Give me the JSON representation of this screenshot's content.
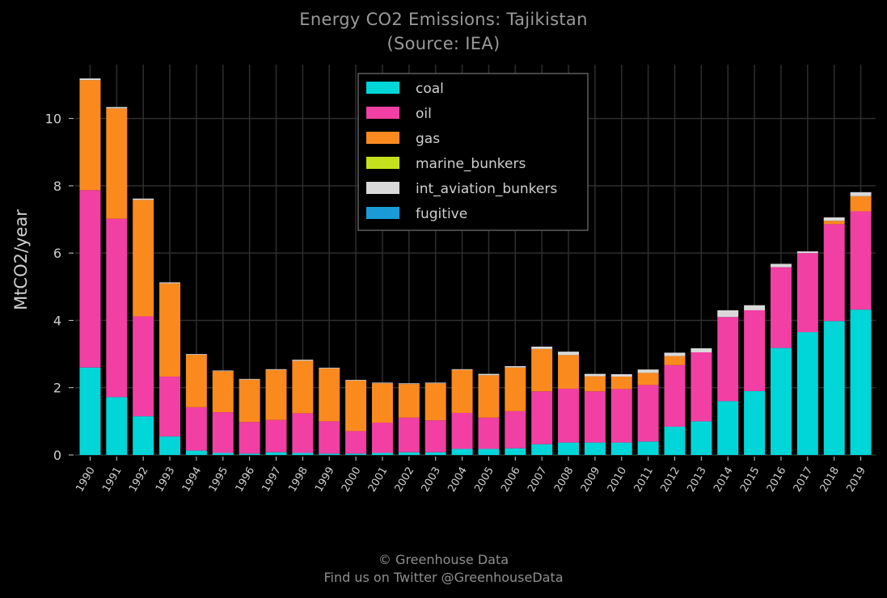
{
  "header": {
    "title": "Energy CO2 Emissions: Tajikistan",
    "subtitle": "(Source: IEA)"
  },
  "footer": {
    "credit_line1": "© Greenhouse Data",
    "credit_line2": "Find us on Twitter @GreenhouseData"
  },
  "colors": {
    "background": "#000000",
    "grid": "#2e2e2e",
    "coal": "#00d5d8",
    "oil": "#f23fa3",
    "gas": "#fb8a1e",
    "marine_bunkers": "#c4e01d",
    "int_aviation_bunkers": "#d9d9d9",
    "fugitive": "#1a9ad6"
  },
  "chart_data": {
    "type": "bar",
    "stacked": true,
    "title": "Energy CO2 Emissions: Tajikistan",
    "subtitle": "(Source: IEA)",
    "xlabel": "",
    "ylabel": "MtCO2/year",
    "ylim": [
      0,
      11.6
    ],
    "yticks": [
      0,
      2,
      4,
      6,
      8,
      10
    ],
    "grid": true,
    "legend_position": "top-center",
    "categories": [
      "1990",
      "1991",
      "1992",
      "1993",
      "1994",
      "1995",
      "1996",
      "1997",
      "1998",
      "1999",
      "2000",
      "2001",
      "2002",
      "2003",
      "2004",
      "2005",
      "2006",
      "2007",
      "2008",
      "2009",
      "2010",
      "2011",
      "2012",
      "2013",
      "2014",
      "2015",
      "2016",
      "2017",
      "2018",
      "2019"
    ],
    "series": [
      {
        "name": "coal",
        "color": "#00d5d8",
        "values": [
          2.6,
          1.72,
          1.15,
          0.55,
          0.13,
          0.06,
          0.04,
          0.08,
          0.06,
          0.04,
          0.04,
          0.06,
          0.08,
          0.08,
          0.18,
          0.18,
          0.2,
          0.32,
          0.37,
          0.37,
          0.37,
          0.4,
          0.84,
          1.0,
          1.6,
          1.9,
          3.18,
          3.65,
          3.98,
          4.32
        ]
      },
      {
        "name": "oil",
        "color": "#f23fa3",
        "values": [
          5.27,
          5.3,
          2.97,
          1.78,
          1.29,
          1.21,
          0.94,
          0.96,
          1.18,
          0.96,
          0.67,
          0.9,
          1.03,
          0.95,
          1.07,
          0.93,
          1.1,
          1.57,
          1.6,
          1.52,
          1.59,
          1.68,
          1.83,
          2.05,
          2.5,
          2.4,
          2.4,
          2.35,
          2.88,
          2.92
        ]
      },
      {
        "name": "gas",
        "color": "#fb8a1e",
        "values": [
          3.27,
          3.28,
          3.46,
          2.77,
          1.56,
          1.22,
          1.26,
          1.49,
          1.56,
          1.57,
          1.5,
          1.17,
          1.0,
          1.1,
          1.28,
          1.26,
          1.3,
          1.26,
          1.0,
          0.45,
          0.37,
          0.36,
          0.27,
          0.0,
          0.0,
          0.0,
          0.0,
          0.0,
          0.1,
          0.45
        ]
      },
      {
        "name": "marine_bunkers",
        "color": "#c4e01d",
        "values": [
          0,
          0,
          0,
          0,
          0,
          0,
          0,
          0,
          0,
          0,
          0,
          0,
          0,
          0,
          0,
          0,
          0,
          0,
          0,
          0,
          0,
          0,
          0,
          0,
          0,
          0,
          0,
          0,
          0,
          0
        ]
      },
      {
        "name": "int_aviation_bunkers",
        "color": "#d9d9d9",
        "values": [
          0.05,
          0.04,
          0.04,
          0.03,
          0.02,
          0.02,
          0.02,
          0.02,
          0.03,
          0.02,
          0.02,
          0.02,
          0.02,
          0.02,
          0.02,
          0.04,
          0.04,
          0.07,
          0.1,
          0.07,
          0.07,
          0.1,
          0.1,
          0.12,
          0.2,
          0.15,
          0.1,
          0.05,
          0.1,
          0.12
        ]
      },
      {
        "name": "fugitive",
        "color": "#1a9ad6",
        "values": [
          0,
          0,
          0,
          0,
          0,
          0,
          0,
          0,
          0,
          0,
          0,
          0,
          0,
          0,
          0,
          0,
          0,
          0,
          0,
          0,
          0,
          0,
          0,
          0,
          0,
          0,
          0,
          0,
          0,
          0
        ]
      }
    ]
  }
}
